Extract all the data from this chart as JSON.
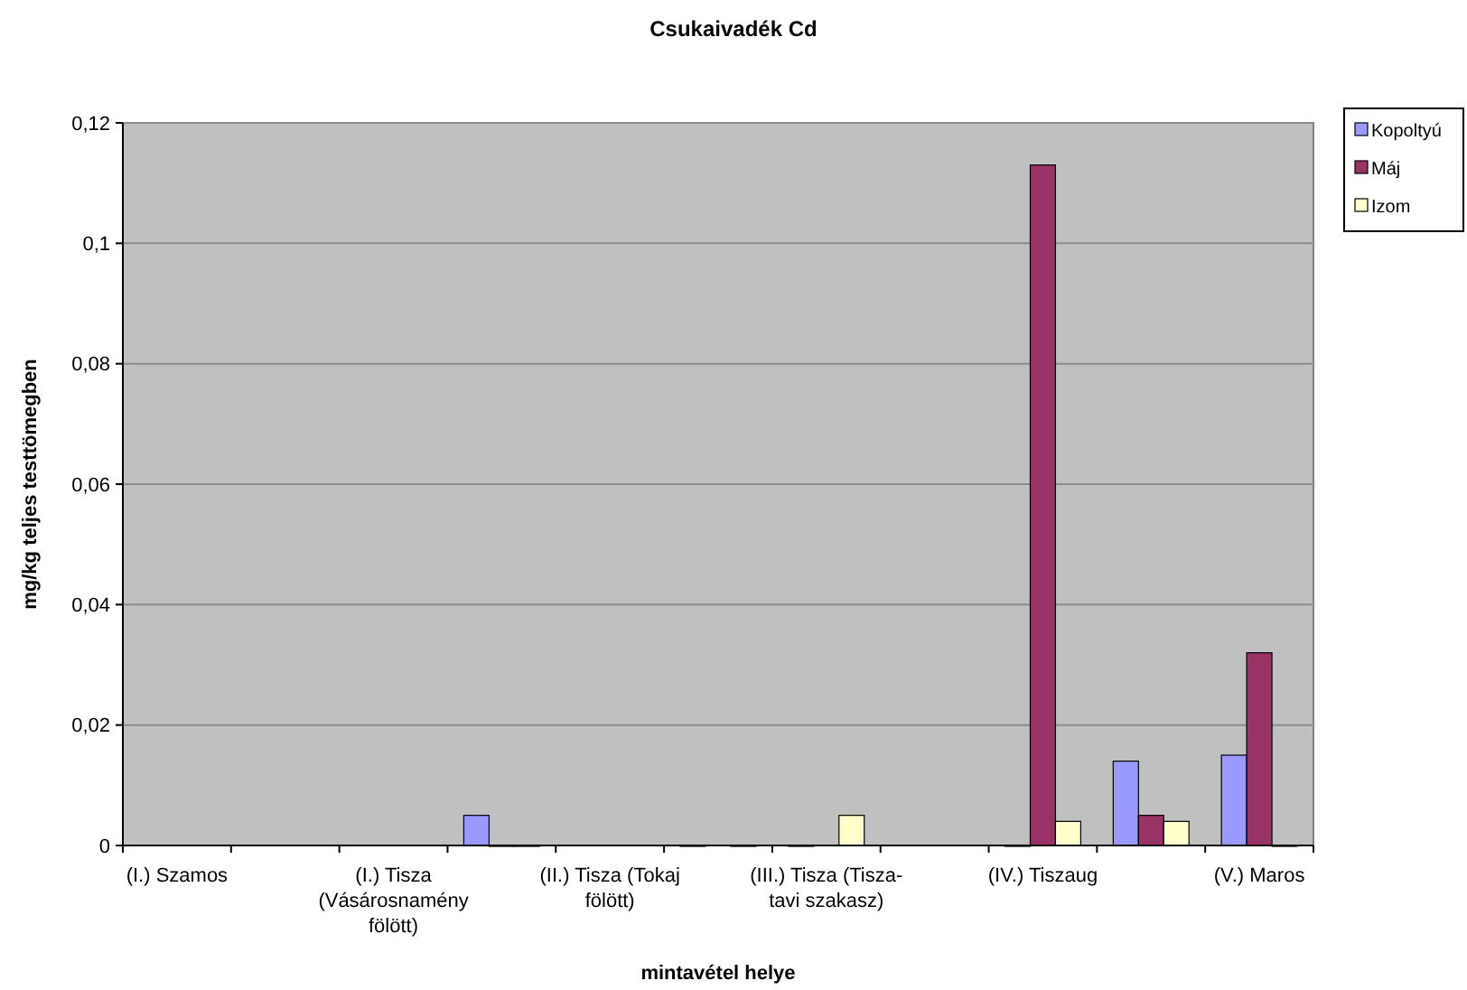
{
  "chart_data": {
    "type": "bar",
    "title": "Csukaivadék Cd",
    "xlabel": "mintavétel helye",
    "ylabel": "mg/kg teljes testtömegben",
    "categories": [
      "(I.) Szamos",
      null,
      "(I.) Tisza (Vásárosnamény fölött)",
      null,
      "(II.) Tisza (Tokaj fölött)",
      null,
      "(III.) Tisza (Tisza-tavi szakasz)",
      null,
      "(IV.) Tiszaug",
      null,
      "(V.) Maros"
    ],
    "series": [
      {
        "name": "Kopoltyú",
        "color": "#9999ff",
        "values": [
          null,
          null,
          null,
          0.005,
          null,
          0,
          0,
          null,
          0,
          0.014,
          0.015
        ]
      },
      {
        "name": "Máj",
        "color": "#993366",
        "values": [
          null,
          null,
          null,
          0,
          null,
          null,
          null,
          null,
          0.113,
          0.005,
          0.032
        ]
      },
      {
        "name": "Izom",
        "color": "#ffffcc",
        "values": [
          null,
          null,
          null,
          0,
          null,
          0,
          0.005,
          null,
          0.004,
          0.004,
          0
        ]
      }
    ],
    "ylim": [
      0,
      0.12
    ],
    "yticks": [
      0,
      {
        "value": 0.02,
        "label": "0,02"
      },
      {
        "value": 0.04,
        "label": "0,04"
      },
      {
        "value": 0.06,
        "label": "0,06"
      },
      {
        "value": 0.08,
        "label": "0,08"
      },
      {
        "value": 0.1,
        "label": "0,1"
      },
      {
        "value": 0.12,
        "label": "0,12"
      }
    ],
    "grid": "y",
    "legend": "top right"
  }
}
